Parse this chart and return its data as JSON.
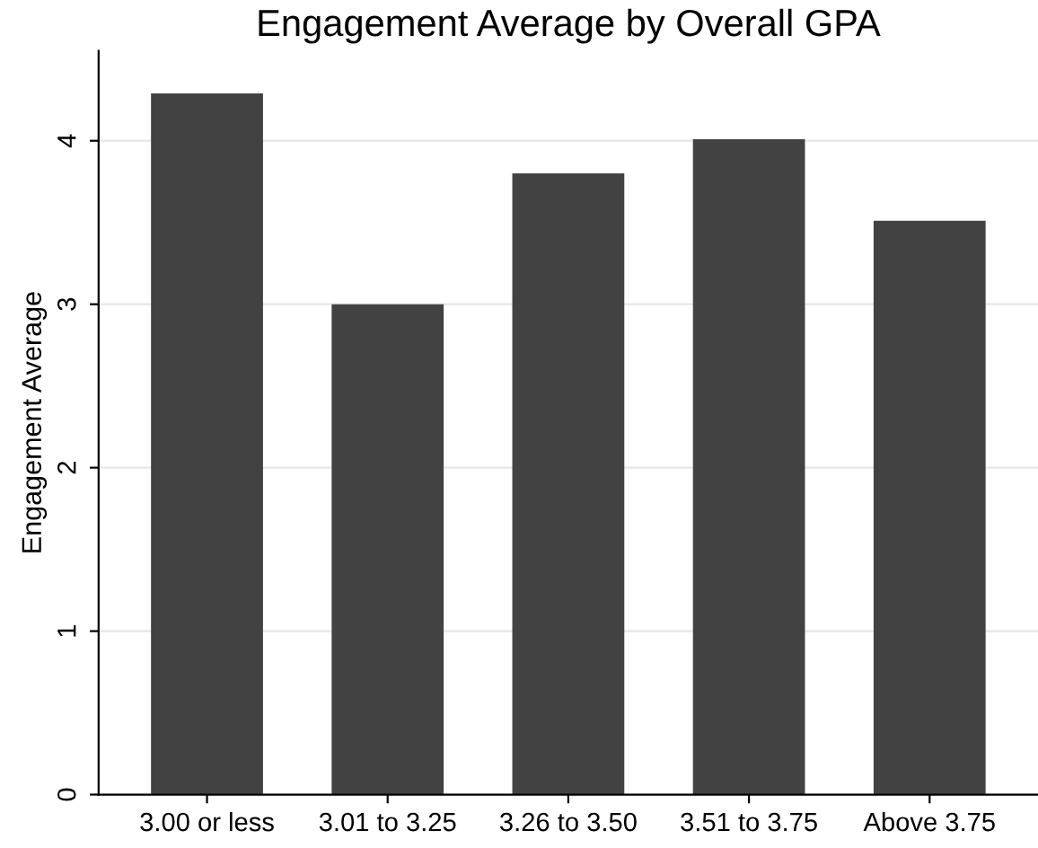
{
  "chart_data": {
    "type": "bar",
    "title": "Engagement Average by Overall GPA",
    "ylabel": "Engagement Average",
    "categories": [
      "3.00 or less",
      "3.01 to 3.25",
      "3.26 to 3.50",
      "3.51 to 3.75",
      "Above 3.75"
    ],
    "values": [
      4.29,
      3.0,
      3.8,
      4.01,
      3.51
    ],
    "color": "#424242",
    "ylim": [
      0,
      4.55
    ],
    "yticks": [
      0,
      1,
      2,
      3,
      4
    ],
    "grid": "y"
  }
}
